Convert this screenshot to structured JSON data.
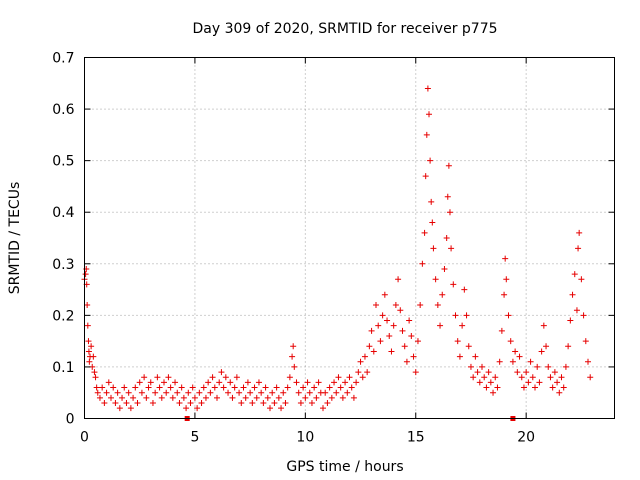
{
  "chart_data": {
    "type": "scatter",
    "title": "Day 309 of 2020, SRMTID for receiver p775",
    "xlabel": "GPS time / hours",
    "ylabel": "SRMTID / TECUs",
    "xlim": [
      0,
      24
    ],
    "ylim": [
      0,
      0.7
    ],
    "x_ticks": [
      0,
      5,
      10,
      15,
      20
    ],
    "y_ticks": [
      0,
      0.1,
      0.2,
      0.3,
      0.4,
      0.5,
      0.6,
      0.7
    ],
    "x_tick_labels": [
      "0",
      "5",
      "10",
      "15",
      "20"
    ],
    "y_tick_labels": [
      "0",
      "0.1",
      "0.2",
      "0.3",
      "0.4",
      "0.5",
      "0.6",
      "0.7"
    ],
    "grid": true,
    "marker": "+",
    "color": "#e60000",
    "flag_markers_x": [
      4.65,
      19.4
    ],
    "series": [
      {
        "name": "SRMTID",
        "points": [
          [
            0.0,
            0.27
          ],
          [
            0.05,
            0.28
          ],
          [
            0.08,
            0.29
          ],
          [
            0.1,
            0.26
          ],
          [
            0.12,
            0.22
          ],
          [
            0.15,
            0.18
          ],
          [
            0.18,
            0.15
          ],
          [
            0.2,
            0.13
          ],
          [
            0.22,
            0.11
          ],
          [
            0.25,
            0.12
          ],
          [
            0.3,
            0.14
          ],
          [
            0.35,
            0.1
          ],
          [
            0.4,
            0.12
          ],
          [
            0.45,
            0.09
          ],
          [
            0.5,
            0.08
          ],
          [
            0.55,
            0.06
          ],
          [
            0.6,
            0.05
          ],
          [
            0.7,
            0.04
          ],
          [
            0.8,
            0.06
          ],
          [
            0.9,
            0.03
          ],
          [
            1.0,
            0.05
          ],
          [
            1.1,
            0.07
          ],
          [
            1.2,
            0.04
          ],
          [
            1.3,
            0.06
          ],
          [
            1.4,
            0.03
          ],
          [
            1.5,
            0.05
          ],
          [
            1.6,
            0.02
          ],
          [
            1.7,
            0.04
          ],
          [
            1.8,
            0.06
          ],
          [
            1.9,
            0.03
          ],
          [
            2.0,
            0.05
          ],
          [
            2.1,
            0.02
          ],
          [
            2.2,
            0.04
          ],
          [
            2.3,
            0.06
          ],
          [
            2.4,
            0.03
          ],
          [
            2.5,
            0.07
          ],
          [
            2.6,
            0.05
          ],
          [
            2.7,
            0.08
          ],
          [
            2.8,
            0.04
          ],
          [
            2.9,
            0.06
          ],
          [
            3.0,
            0.07
          ],
          [
            3.1,
            0.03
          ],
          [
            3.2,
            0.05
          ],
          [
            3.3,
            0.08
          ],
          [
            3.4,
            0.06
          ],
          [
            3.5,
            0.04
          ],
          [
            3.6,
            0.07
          ],
          [
            3.7,
            0.05
          ],
          [
            3.8,
            0.08
          ],
          [
            3.9,
            0.06
          ],
          [
            4.0,
            0.04
          ],
          [
            4.1,
            0.07
          ],
          [
            4.2,
            0.05
          ],
          [
            4.3,
            0.03
          ],
          [
            4.4,
            0.06
          ],
          [
            4.5,
            0.04
          ],
          [
            4.6,
            0.02
          ],
          [
            4.7,
            0.05
          ],
          [
            4.8,
            0.03
          ],
          [
            4.9,
            0.06
          ],
          [
            5.0,
            0.04
          ],
          [
            5.1,
            0.02
          ],
          [
            5.2,
            0.05
          ],
          [
            5.3,
            0.03
          ],
          [
            5.4,
            0.06
          ],
          [
            5.5,
            0.04
          ],
          [
            5.6,
            0.07
          ],
          [
            5.7,
            0.05
          ],
          [
            5.8,
            0.08
          ],
          [
            5.9,
            0.06
          ],
          [
            6.0,
            0.04
          ],
          [
            6.1,
            0.07
          ],
          [
            6.2,
            0.09
          ],
          [
            6.3,
            0.06
          ],
          [
            6.4,
            0.08
          ],
          [
            6.5,
            0.05
          ],
          [
            6.6,
            0.07
          ],
          [
            6.7,
            0.04
          ],
          [
            6.8,
            0.06
          ],
          [
            6.9,
            0.08
          ],
          [
            7.0,
            0.05
          ],
          [
            7.1,
            0.03
          ],
          [
            7.2,
            0.06
          ],
          [
            7.3,
            0.04
          ],
          [
            7.4,
            0.07
          ],
          [
            7.5,
            0.05
          ],
          [
            7.6,
            0.03
          ],
          [
            7.7,
            0.06
          ],
          [
            7.8,
            0.04
          ],
          [
            7.9,
            0.07
          ],
          [
            8.0,
            0.05
          ],
          [
            8.1,
            0.03
          ],
          [
            8.2,
            0.06
          ],
          [
            8.3,
            0.04
          ],
          [
            8.4,
            0.02
          ],
          [
            8.5,
            0.05
          ],
          [
            8.6,
            0.03
          ],
          [
            8.7,
            0.06
          ],
          [
            8.8,
            0.04
          ],
          [
            8.9,
            0.02
          ],
          [
            9.0,
            0.05
          ],
          [
            9.1,
            0.03
          ],
          [
            9.2,
            0.06
          ],
          [
            9.3,
            0.08
          ],
          [
            9.4,
            0.12
          ],
          [
            9.45,
            0.14
          ],
          [
            9.5,
            0.1
          ],
          [
            9.6,
            0.07
          ],
          [
            9.7,
            0.05
          ],
          [
            9.8,
            0.03
          ],
          [
            9.9,
            0.06
          ],
          [
            10.0,
            0.04
          ],
          [
            10.1,
            0.07
          ],
          [
            10.2,
            0.05
          ],
          [
            10.3,
            0.03
          ],
          [
            10.4,
            0.06
          ],
          [
            10.5,
            0.04
          ],
          [
            10.6,
            0.07
          ],
          [
            10.7,
            0.05
          ],
          [
            10.8,
            0.02
          ],
          [
            10.9,
            0.05
          ],
          [
            11.0,
            0.03
          ],
          [
            11.1,
            0.06
          ],
          [
            11.2,
            0.04
          ],
          [
            11.3,
            0.07
          ],
          [
            11.4,
            0.05
          ],
          [
            11.5,
            0.08
          ],
          [
            11.6,
            0.06
          ],
          [
            11.7,
            0.04
          ],
          [
            11.8,
            0.07
          ],
          [
            11.9,
            0.05
          ],
          [
            12.0,
            0.08
          ],
          [
            12.1,
            0.06
          ],
          [
            12.2,
            0.04
          ],
          [
            12.3,
            0.07
          ],
          [
            12.4,
            0.09
          ],
          [
            12.5,
            0.11
          ],
          [
            12.6,
            0.08
          ],
          [
            12.7,
            0.12
          ],
          [
            12.8,
            0.09
          ],
          [
            12.9,
            0.14
          ],
          [
            13.0,
            0.17
          ],
          [
            13.1,
            0.13
          ],
          [
            13.2,
            0.22
          ],
          [
            13.3,
            0.18
          ],
          [
            13.4,
            0.15
          ],
          [
            13.5,
            0.2
          ],
          [
            13.6,
            0.24
          ],
          [
            13.7,
            0.19
          ],
          [
            13.8,
            0.16
          ],
          [
            13.9,
            0.13
          ],
          [
            14.0,
            0.18
          ],
          [
            14.1,
            0.22
          ],
          [
            14.2,
            0.27
          ],
          [
            14.3,
            0.21
          ],
          [
            14.4,
            0.17
          ],
          [
            14.5,
            0.14
          ],
          [
            14.6,
            0.11
          ],
          [
            14.7,
            0.19
          ],
          [
            14.8,
            0.16
          ],
          [
            14.9,
            0.12
          ],
          [
            15.0,
            0.09
          ],
          [
            15.1,
            0.15
          ],
          [
            15.2,
            0.22
          ],
          [
            15.3,
            0.3
          ],
          [
            15.4,
            0.36
          ],
          [
            15.45,
            0.47
          ],
          [
            15.5,
            0.55
          ],
          [
            15.55,
            0.64
          ],
          [
            15.6,
            0.59
          ],
          [
            15.65,
            0.5
          ],
          [
            15.7,
            0.42
          ],
          [
            15.75,
            0.38
          ],
          [
            15.8,
            0.33
          ],
          [
            15.9,
            0.27
          ],
          [
            16.0,
            0.22
          ],
          [
            16.1,
            0.18
          ],
          [
            16.2,
            0.24
          ],
          [
            16.3,
            0.29
          ],
          [
            16.4,
            0.35
          ],
          [
            16.45,
            0.43
          ],
          [
            16.5,
            0.49
          ],
          [
            16.55,
            0.4
          ],
          [
            16.6,
            0.33
          ],
          [
            16.7,
            0.26
          ],
          [
            16.8,
            0.2
          ],
          [
            16.9,
            0.15
          ],
          [
            17.0,
            0.12
          ],
          [
            17.1,
            0.18
          ],
          [
            17.2,
            0.25
          ],
          [
            17.3,
            0.2
          ],
          [
            17.4,
            0.14
          ],
          [
            17.5,
            0.1
          ],
          [
            17.6,
            0.08
          ],
          [
            17.7,
            0.12
          ],
          [
            17.8,
            0.09
          ],
          [
            17.9,
            0.07
          ],
          [
            18.0,
            0.1
          ],
          [
            18.1,
            0.08
          ],
          [
            18.2,
            0.06
          ],
          [
            18.3,
            0.09
          ],
          [
            18.4,
            0.07
          ],
          [
            18.5,
            0.05
          ],
          [
            18.6,
            0.08
          ],
          [
            18.7,
            0.06
          ],
          [
            18.8,
            0.11
          ],
          [
            18.9,
            0.17
          ],
          [
            19.0,
            0.24
          ],
          [
            19.05,
            0.31
          ],
          [
            19.1,
            0.27
          ],
          [
            19.2,
            0.2
          ],
          [
            19.3,
            0.15
          ],
          [
            19.4,
            0.11
          ],
          [
            19.5,
            0.13
          ],
          [
            19.6,
            0.09
          ],
          [
            19.7,
            0.12
          ],
          [
            19.8,
            0.08
          ],
          [
            19.9,
            0.06
          ],
          [
            20.0,
            0.09
          ],
          [
            20.1,
            0.07
          ],
          [
            20.2,
            0.11
          ],
          [
            20.3,
            0.08
          ],
          [
            20.4,
            0.06
          ],
          [
            20.5,
            0.1
          ],
          [
            20.6,
            0.07
          ],
          [
            20.7,
            0.13
          ],
          [
            20.8,
            0.18
          ],
          [
            20.9,
            0.14
          ],
          [
            21.0,
            0.1
          ],
          [
            21.1,
            0.08
          ],
          [
            21.2,
            0.06
          ],
          [
            21.3,
            0.09
          ],
          [
            21.4,
            0.07
          ],
          [
            21.5,
            0.05
          ],
          [
            21.6,
            0.08
          ],
          [
            21.7,
            0.06
          ],
          [
            21.8,
            0.1
          ],
          [
            21.9,
            0.14
          ],
          [
            22.0,
            0.19
          ],
          [
            22.1,
            0.24
          ],
          [
            22.2,
            0.28
          ],
          [
            22.3,
            0.21
          ],
          [
            22.35,
            0.33
          ],
          [
            22.4,
            0.36
          ],
          [
            22.5,
            0.27
          ],
          [
            22.6,
            0.2
          ],
          [
            22.7,
            0.15
          ],
          [
            22.8,
            0.11
          ],
          [
            22.9,
            0.08
          ]
        ]
      }
    ]
  }
}
